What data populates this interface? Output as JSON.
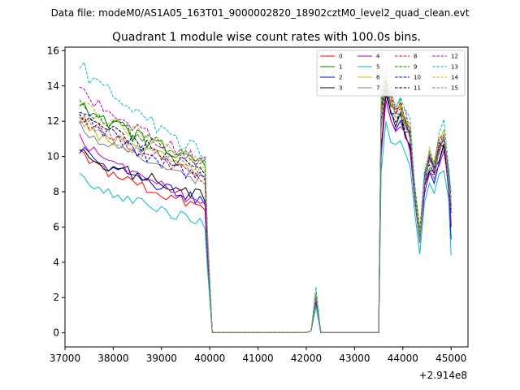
{
  "chart_data": {
    "type": "line",
    "suptitle": "Data file: modeM0/AS1A05_163T01_9000002820_18902cztM0_level2_quad_clean.evt",
    "title": "Quadrant 1 module wise count rates with 100.0s bins.",
    "xlabel": "",
    "ylabel": "",
    "x_offset_label": "+2.914e8",
    "xlim": [
      37000,
      45350
    ],
    "ylim": [
      -0.8,
      16.2
    ],
    "x_ticks": [
      37000,
      38000,
      39000,
      40000,
      41000,
      42000,
      43000,
      44000,
      45000
    ],
    "x_tick_labels": [
      "37000",
      "38000",
      "39000",
      "40000",
      "41000",
      "42000",
      "43000",
      "44000",
      "45000"
    ],
    "y_ticks": [
      0,
      2,
      4,
      6,
      8,
      10,
      12,
      14,
      16
    ],
    "y_tick_labels": [
      "0",
      "2",
      "4",
      "6",
      "8",
      "10",
      "12",
      "14",
      "16"
    ],
    "grid": false,
    "legend": {
      "location": "upper right",
      "columns": 4
    },
    "series": [
      {
        "name": "0",
        "color": "#ff0000",
        "dash": "solid",
        "start": 10.1,
        "orbit1_end": 7.0,
        "orbit2_start": 10.2,
        "orbit2_peak": 14.2,
        "orbit2_end": 6.2,
        "saa": 1.7
      },
      {
        "name": "1",
        "color": "#008000",
        "dash": "solid",
        "start": 13.2,
        "orbit1_end": 9.4,
        "orbit2_start": 13.0,
        "orbit2_peak": 14.3,
        "orbit2_end": 7.0,
        "saa": 2.2
      },
      {
        "name": "2",
        "color": "#0000ff",
        "dash": "solid",
        "start": 10.5,
        "orbit1_end": 7.4,
        "orbit2_start": 10.4,
        "orbit2_peak": 13.2,
        "orbit2_end": 5.3,
        "saa": 1.8
      },
      {
        "name": "3",
        "color": "#000000",
        "dash": "solid",
        "start": 10.3,
        "orbit1_end": 7.8,
        "orbit2_start": 10.3,
        "orbit2_peak": 13.5,
        "orbit2_end": 6.0,
        "saa": 1.8
      },
      {
        "name": "4",
        "color": "#bf00bf",
        "dash": "solid",
        "start": 10.9,
        "orbit1_end": 7.3,
        "orbit2_start": 10.0,
        "orbit2_peak": 13.2,
        "orbit2_end": 6.1,
        "saa": 1.8
      },
      {
        "name": "5",
        "color": "#00bfbf",
        "dash": "solid",
        "start": 8.8,
        "orbit1_end": 6.2,
        "orbit2_start": 9.1,
        "orbit2_peak": 12.0,
        "orbit2_end": 4.4,
        "saa": 1.5
      },
      {
        "name": "6",
        "color": "#bfbf00",
        "dash": "solid",
        "start": 12.0,
        "orbit1_end": 9.0,
        "orbit2_start": 12.5,
        "orbit2_peak": 14.3,
        "orbit2_end": 7.2,
        "saa": 2.1
      },
      {
        "name": "7",
        "color": "#808080",
        "dash": "solid",
        "start": 11.8,
        "orbit1_end": 8.5,
        "orbit2_start": 11.6,
        "orbit2_peak": 13.8,
        "orbit2_end": 6.8,
        "saa": 2.0
      },
      {
        "name": "8",
        "color": "#ff0000",
        "dash": "dashed",
        "start": 12.3,
        "orbit1_end": 8.8,
        "orbit2_start": 12.5,
        "orbit2_peak": 14.4,
        "orbit2_end": 7.1,
        "saa": 2.1
      },
      {
        "name": "9",
        "color": "#008000",
        "dash": "dashed",
        "start": 13.0,
        "orbit1_end": 9.5,
        "orbit2_start": 13.2,
        "orbit2_peak": 14.3,
        "orbit2_end": 7.6,
        "saa": 2.2
      },
      {
        "name": "10",
        "color": "#0000ff",
        "dash": "dashed",
        "start": 12.5,
        "orbit1_end": 8.6,
        "orbit2_start": 12.0,
        "orbit2_peak": 13.8,
        "orbit2_end": 6.8,
        "saa": 2.0
      },
      {
        "name": "11",
        "color": "#000000",
        "dash": "dashed",
        "start": 12.6,
        "orbit1_end": 9.2,
        "orbit2_start": 12.8,
        "orbit2_peak": 14.0,
        "orbit2_end": 7.0,
        "saa": 2.1
      },
      {
        "name": "12",
        "color": "#bf00bf",
        "dash": "dashed",
        "start": 13.8,
        "orbit1_end": 9.5,
        "orbit2_start": 13.3,
        "orbit2_peak": 14.5,
        "orbit2_end": 7.3,
        "saa": 2.3
      },
      {
        "name": "13",
        "color": "#00bfbf",
        "dash": "dashed",
        "start": 15.2,
        "orbit1_end": 10.0,
        "orbit2_start": 13.6,
        "orbit2_peak": 15.0,
        "orbit2_end": 8.0,
        "saa": 2.6
      },
      {
        "name": "14",
        "color": "#bfbf00",
        "dash": "dashed",
        "start": 13.3,
        "orbit1_end": 9.6,
        "orbit2_start": 13.0,
        "orbit2_peak": 14.4,
        "orbit2_end": 7.5,
        "saa": 2.3
      },
      {
        "name": "15",
        "color": "#808080",
        "dash": "dashed",
        "start": 12.2,
        "orbit1_end": 9.0,
        "orbit2_start": 12.2,
        "orbit2_peak": 14.0,
        "orbit2_end": 7.0,
        "saa": 2.0
      }
    ],
    "time_segments": {
      "orbit1_x": [
        37300,
        39900
      ],
      "drop_x": [
        39950,
        40050
      ],
      "gap_x": [
        40050,
        42100
      ],
      "saa_x": [
        42100,
        42300
      ],
      "gap2_x": [
        42300,
        43500
      ],
      "orbit2_x": [
        43550,
        45000
      ]
    }
  }
}
